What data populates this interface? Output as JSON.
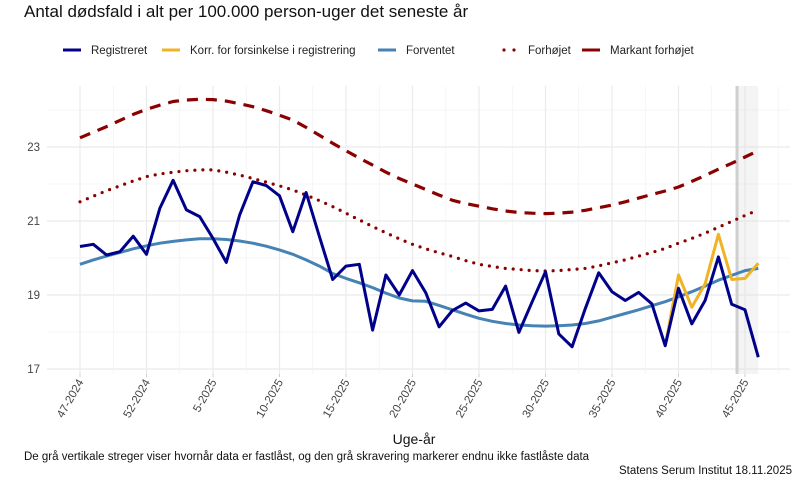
{
  "chart_data": {
    "type": "line",
    "title": "Antal dødsfald i alt per 100.000 person-uger det seneste år",
    "xlabel": "Uge-år",
    "ylabel": "",
    "ylim": [
      16.9,
      24.6
    ],
    "yticks": [
      17,
      19,
      21,
      23
    ],
    "xtick_labels": [
      "47-2024",
      "52-2024",
      "5-2025",
      "10-2025",
      "15-2025",
      "20-2025",
      "25-2025",
      "30-2025",
      "35-2025",
      "40-2025",
      "45-2025"
    ],
    "grid": true,
    "legend_position": "top",
    "x": [
      "47-2024",
      "48-2024",
      "49-2024",
      "50-2024",
      "51-2024",
      "52-2024",
      "1-2025",
      "2-2025",
      "3-2025",
      "4-2025",
      "5-2025",
      "6-2025",
      "7-2025",
      "8-2025",
      "9-2025",
      "10-2025",
      "11-2025",
      "12-2025",
      "13-2025",
      "14-2025",
      "15-2025",
      "16-2025",
      "17-2025",
      "18-2025",
      "19-2025",
      "20-2025",
      "21-2025",
      "22-2025",
      "23-2025",
      "24-2025",
      "25-2025",
      "26-2025",
      "27-2025",
      "28-2025",
      "29-2025",
      "30-2025",
      "31-2025",
      "32-2025",
      "33-2025",
      "34-2025",
      "35-2025",
      "36-2025",
      "37-2025",
      "38-2025",
      "39-2025",
      "40-2025",
      "41-2025",
      "42-2025",
      "43-2025",
      "44-2025",
      "45-2025",
      "46-2025"
    ],
    "not_locked_from": "39-2025",
    "series": [
      {
        "name": "Registreret",
        "color": "#00008B",
        "style": "solid",
        "values": [
          20.31,
          20.37,
          20.08,
          20.17,
          20.59,
          20.1,
          21.34,
          22.1,
          21.3,
          21.12,
          20.53,
          19.88,
          21.16,
          22.06,
          21.96,
          21.68,
          20.71,
          21.77,
          20.58,
          19.42,
          19.78,
          19.83,
          18.05,
          19.54,
          19.0,
          19.66,
          19.06,
          18.14,
          18.58,
          18.78,
          18.57,
          18.61,
          19.24,
          17.99,
          18.82,
          19.63,
          17.95,
          17.6,
          18.64,
          19.6,
          19.09,
          18.85,
          19.07,
          18.76,
          17.63,
          19.18,
          18.22,
          18.85,
          20.03,
          18.75,
          18.6,
          17.32
        ]
      },
      {
        "name": "Korr. for forsinkelse i registrering",
        "color": "#F0B323",
        "style": "solid",
        "values": [
          null,
          null,
          null,
          null,
          null,
          null,
          null,
          null,
          null,
          null,
          null,
          null,
          null,
          null,
          null,
          null,
          null,
          null,
          null,
          null,
          null,
          null,
          null,
          null,
          null,
          null,
          null,
          null,
          null,
          null,
          null,
          null,
          null,
          null,
          null,
          null,
          null,
          null,
          null,
          null,
          null,
          null,
          null,
          null,
          17.63,
          19.54,
          18.67,
          19.3,
          20.64,
          19.42,
          19.45,
          19.86
        ]
      },
      {
        "name": "Forventet",
        "color": "#4682B4",
        "style": "solid",
        "values": [
          19.83,
          19.95,
          20.05,
          20.15,
          20.25,
          20.33,
          20.4,
          20.45,
          20.49,
          20.52,
          20.52,
          20.5,
          20.46,
          20.4,
          20.32,
          20.22,
          20.1,
          19.95,
          19.78,
          19.58,
          19.45,
          19.33,
          19.2,
          19.05,
          18.92,
          18.84,
          18.83,
          18.72,
          18.6,
          18.48,
          18.37,
          18.29,
          18.23,
          18.19,
          18.17,
          18.16,
          18.17,
          18.19,
          18.23,
          18.3,
          18.4,
          18.5,
          18.6,
          18.71,
          18.82,
          18.95,
          19.09,
          19.24,
          19.4,
          19.53,
          19.66,
          19.72
        ]
      },
      {
        "name": "Forhøjet",
        "color": "#8B0000",
        "style": "dotted",
        "values": [
          21.52,
          21.67,
          21.82,
          21.95,
          22.08,
          22.2,
          22.27,
          22.32,
          22.36,
          22.38,
          22.38,
          22.32,
          22.24,
          22.15,
          22.05,
          21.95,
          21.84,
          21.7,
          21.55,
          21.39,
          21.21,
          21.03,
          20.85,
          20.68,
          20.52,
          20.37,
          20.25,
          20.14,
          20.04,
          19.93,
          19.83,
          19.77,
          19.72,
          19.69,
          19.66,
          19.65,
          19.66,
          19.69,
          19.72,
          19.79,
          19.87,
          19.95,
          20.05,
          20.15,
          20.26,
          20.4,
          20.53,
          20.67,
          20.83,
          20.99,
          21.15,
          21.3
        ]
      },
      {
        "name": "Markant forhøjet",
        "color": "#8B0000",
        "style": "dashed",
        "values": [
          23.25,
          23.4,
          23.55,
          23.72,
          23.88,
          24.02,
          24.13,
          24.23,
          24.27,
          24.29,
          24.28,
          24.24,
          24.17,
          24.09,
          23.98,
          23.86,
          23.73,
          23.53,
          23.32,
          23.1,
          22.9,
          22.7,
          22.51,
          22.32,
          22.15,
          22.0,
          21.85,
          21.7,
          21.56,
          21.47,
          21.4,
          21.33,
          21.27,
          21.23,
          21.21,
          21.2,
          21.21,
          21.24,
          21.29,
          21.36,
          21.43,
          21.52,
          21.62,
          21.72,
          21.81,
          21.92,
          22.07,
          22.23,
          22.4,
          22.56,
          22.73,
          22.9
        ]
      }
    ]
  },
  "footer": {
    "note": "De grå vertikale streger viser hvornår data er fastlåst, og den grå skravering markerer endnu ikke fastlåste data",
    "source": "Statens Serum Institut  18.11.2025"
  }
}
